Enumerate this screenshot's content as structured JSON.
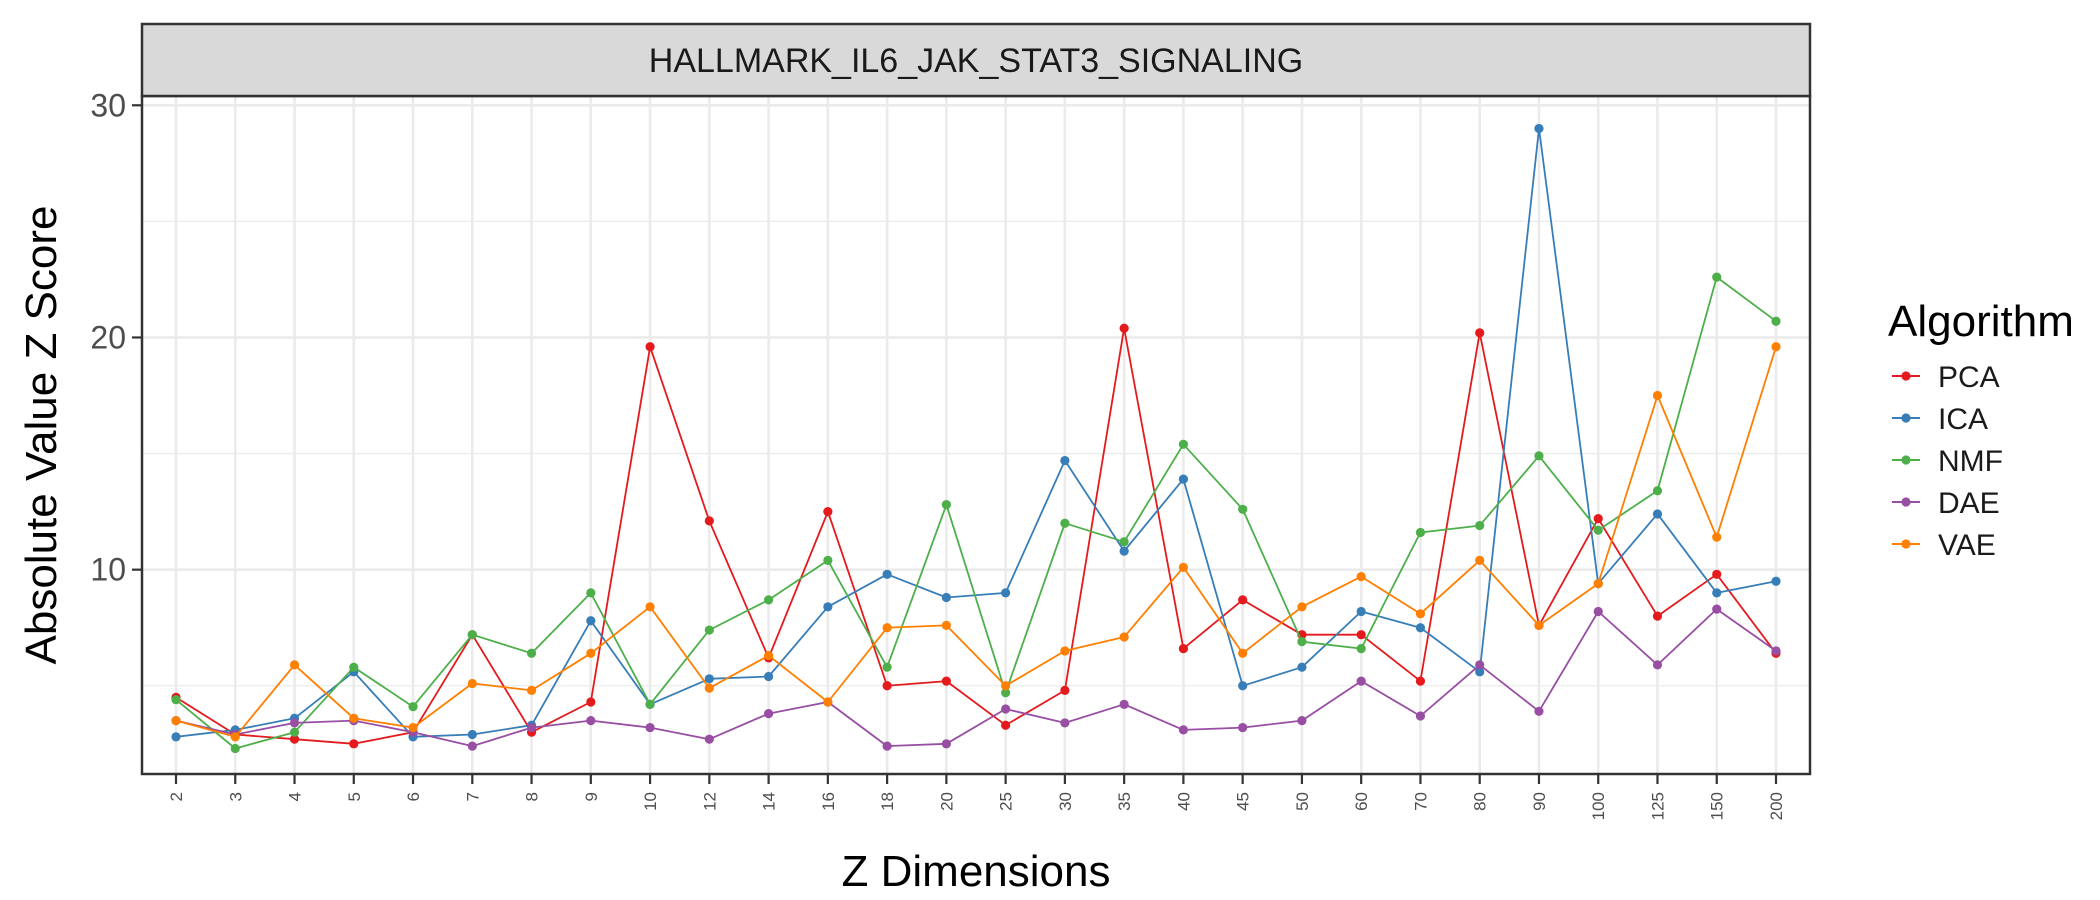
{
  "chart_data": {
    "type": "line",
    "title": "HALLMARK_IL6_JAK_STAT3_SIGNALING",
    "xlabel": "Z Dimensions",
    "ylabel": "Absolute Value Z Score",
    "ylim": [
      1.2,
      30.4
    ],
    "yticks": [
      10,
      20,
      30
    ],
    "grid": true,
    "legend_title": "Algorithm",
    "legend_position": "right",
    "categories": [
      "2",
      "3",
      "4",
      "5",
      "6",
      "7",
      "8",
      "9",
      "10",
      "12",
      "14",
      "16",
      "18",
      "20",
      "25",
      "30",
      "35",
      "40",
      "45",
      "50",
      "60",
      "70",
      "80",
      "90",
      "100",
      "125",
      "150",
      "200"
    ],
    "series": [
      {
        "name": "PCA",
        "color": "#e41a1c",
        "values": [
          4.5,
          2.9,
          2.7,
          2.5,
          3.0,
          7.2,
          3.0,
          4.3,
          19.6,
          12.1,
          6.2,
          12.5,
          5.0,
          5.2,
          3.3,
          4.8,
          20.4,
          6.6,
          8.7,
          7.2,
          7.2,
          5.2,
          20.2,
          7.6,
          12.2,
          8.0,
          9.8,
          6.4
        ]
      },
      {
        "name": "ICA",
        "color": "#377eb8",
        "values": [
          2.8,
          3.1,
          3.6,
          5.6,
          2.8,
          2.9,
          3.3,
          7.8,
          4.2,
          5.3,
          5.4,
          8.4,
          9.8,
          8.8,
          9.0,
          14.7,
          10.8,
          13.9,
          5.0,
          5.8,
          8.2,
          7.5,
          5.6,
          29.0,
          9.4,
          12.4,
          9.0,
          9.5
        ]
      },
      {
        "name": "NMF",
        "color": "#4daf4a",
        "values": [
          4.4,
          2.3,
          3.0,
          5.8,
          4.1,
          7.2,
          6.4,
          9.0,
          4.2,
          7.4,
          8.7,
          10.4,
          5.8,
          12.8,
          4.7,
          12.0,
          11.2,
          15.4,
          12.6,
          6.9,
          6.6,
          11.6,
          11.9,
          14.9,
          11.7,
          13.4,
          22.6,
          20.7
        ]
      },
      {
        "name": "DAE",
        "color": "#984ea3",
        "values": [
          3.5,
          2.9,
          3.4,
          3.5,
          3.0,
          2.4,
          3.2,
          3.5,
          3.2,
          2.7,
          3.8,
          4.3,
          2.4,
          2.5,
          4.0,
          3.4,
          4.2,
          3.1,
          3.2,
          3.5,
          5.2,
          3.7,
          5.9,
          3.9,
          8.2,
          5.9,
          8.3,
          6.5
        ]
      },
      {
        "name": "VAE",
        "color": "#ff7f00",
        "values": [
          3.5,
          2.8,
          5.9,
          3.6,
          3.2,
          5.1,
          4.8,
          6.4,
          8.4,
          4.9,
          6.3,
          4.3,
          7.5,
          7.6,
          5.0,
          6.5,
          7.1,
          10.1,
          6.4,
          8.4,
          9.7,
          8.1,
          10.4,
          7.6,
          9.4,
          17.5,
          11.4,
          19.6
        ]
      }
    ]
  }
}
